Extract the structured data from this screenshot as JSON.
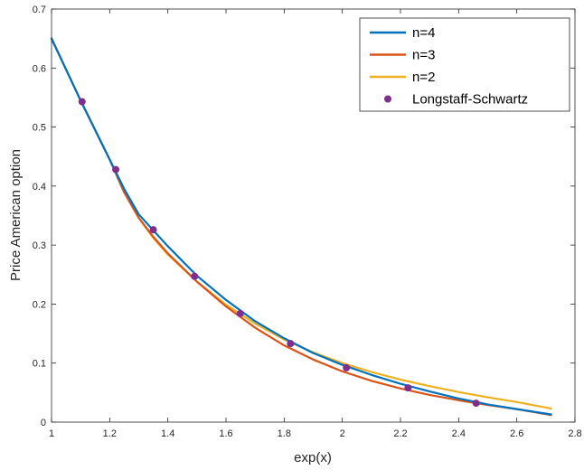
{
  "chart_data": {
    "type": "line",
    "title": "",
    "xlabel": "exp(x)",
    "ylabel": "Price American option",
    "xlim": [
      1,
      2.8
    ],
    "ylim": [
      0,
      0.7
    ],
    "xticks": [
      1,
      1.2,
      1.4,
      1.6,
      1.8,
      2,
      2.2,
      2.4,
      2.6,
      2.8
    ],
    "xtick_labels": [
      "1",
      "1.2",
      "1.4",
      "1.6",
      "1.8",
      "2",
      "2.2",
      "2.4",
      "2.6",
      "2.8"
    ],
    "yticks": [
      0,
      0.1,
      0.2,
      0.3,
      0.4,
      0.5,
      0.6,
      0.7
    ],
    "ytick_labels": [
      "0",
      "0.1",
      "0.2",
      "0.3",
      "0.4",
      "0.5",
      "0.6",
      "0.7"
    ],
    "grid": false,
    "legend_position": "top-right",
    "series": [
      {
        "name": "n=4",
        "style": "line",
        "color": "#0072BD",
        "x": [
          1.0,
          1.1,
          1.2,
          1.25,
          1.3,
          1.35,
          1.4,
          1.5,
          1.6,
          1.7,
          1.8,
          1.9,
          2.0,
          2.1,
          2.2,
          2.3,
          2.4,
          2.5,
          2.6,
          2.718
        ],
        "y": [
          0.65,
          0.545,
          0.445,
          0.395,
          0.352,
          0.325,
          0.298,
          0.248,
          0.207,
          0.171,
          0.142,
          0.117,
          0.097,
          0.08,
          0.065,
          0.052,
          0.04,
          0.03,
          0.022,
          0.013
        ]
      },
      {
        "name": "n=3",
        "style": "line",
        "color": "#D95319",
        "x": [
          1.0,
          1.1,
          1.2,
          1.25,
          1.3,
          1.35,
          1.4,
          1.5,
          1.6,
          1.7,
          1.8,
          1.9,
          2.0,
          2.1,
          2.2,
          2.3,
          2.4,
          2.5,
          2.6,
          2.718
        ],
        "y": [
          0.65,
          0.545,
          0.445,
          0.389,
          0.346,
          0.314,
          0.286,
          0.238,
          0.196,
          0.16,
          0.13,
          0.106,
          0.086,
          0.07,
          0.057,
          0.046,
          0.037,
          0.029,
          0.022,
          0.012
        ]
      },
      {
        "name": "n=2",
        "style": "line",
        "color": "#EDB120",
        "x": [
          1.0,
          1.1,
          1.2,
          1.25,
          1.3,
          1.35,
          1.4,
          1.5,
          1.6,
          1.7,
          1.8,
          1.9,
          2.0,
          2.1,
          2.2,
          2.3,
          2.4,
          2.5,
          2.6,
          2.718
        ],
        "y": [
          0.65,
          0.545,
          0.445,
          0.39,
          0.346,
          0.312,
          0.284,
          0.238,
          0.199,
          0.167,
          0.14,
          0.118,
          0.1,
          0.085,
          0.072,
          0.061,
          0.051,
          0.042,
          0.034,
          0.023
        ]
      },
      {
        "name": "Longstaff-Schwartz",
        "style": "markers",
        "color": "#7E2F8E",
        "x": [
          1.105,
          1.221,
          1.35,
          1.492,
          1.649,
          1.822,
          2.014,
          2.226,
          2.46
        ],
        "y": [
          0.543,
          0.428,
          0.326,
          0.247,
          0.184,
          0.133,
          0.092,
          0.058,
          0.032
        ]
      }
    ]
  }
}
